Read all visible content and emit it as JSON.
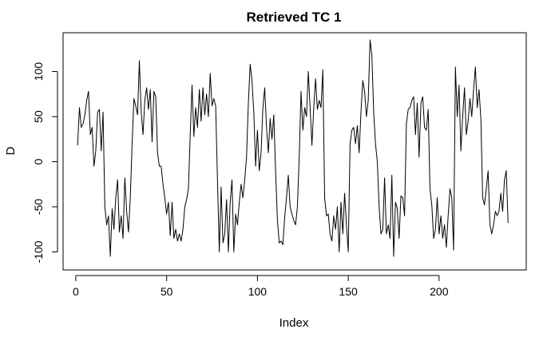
{
  "chart_data": {
    "type": "line",
    "title": "Retrieved TC   1",
    "xlabel": "Index",
    "ylabel": "D",
    "xlim": [
      -7,
      248
    ],
    "ylim": [
      -120,
      143
    ],
    "xticks": [
      0,
      50,
      100,
      150,
      200
    ],
    "yticks": [
      -100,
      -50,
      0,
      50,
      100
    ],
    "grid": false,
    "legend": "none",
    "line_color": "#000000",
    "series": [
      {
        "values": [
          18,
          60,
          38,
          42,
          52,
          68,
          78,
          30,
          38,
          -5,
          12,
          55,
          58,
          12,
          55,
          -50,
          -70,
          -60,
          -105,
          -52,
          -75,
          -40,
          -20,
          -78,
          -60,
          -85,
          -18,
          -55,
          -78,
          -40,
          20,
          70,
          62,
          52,
          112,
          55,
          30,
          68,
          82,
          58,
          80,
          22,
          78,
          72,
          10,
          -5,
          -5,
          -25,
          -40,
          -58,
          -45,
          -82,
          -45,
          -85,
          -75,
          -88,
          -80,
          -88,
          -75,
          -50,
          -42,
          -30,
          30,
          85,
          28,
          60,
          38,
          80,
          45,
          82,
          52,
          75,
          50,
          98,
          62,
          70,
          62,
          -20,
          -100,
          -28,
          -90,
          -80,
          -42,
          -100,
          -45,
          -20,
          -100,
          -58,
          -70,
          -45,
          -25,
          -40,
          -20,
          5,
          65,
          108,
          90,
          55,
          -5,
          35,
          -10,
          10,
          60,
          82,
          38,
          10,
          48,
          25,
          52,
          -10,
          -65,
          -90,
          -88,
          -92,
          -62,
          -40,
          -15,
          -50,
          -58,
          -65,
          -70,
          -50,
          5,
          78,
          35,
          60,
          50,
          100,
          60,
          18,
          60,
          92,
          58,
          68,
          60,
          102,
          -40,
          -60,
          -58,
          -80,
          -88,
          -60,
          -75,
          -50,
          -100,
          -45,
          -80,
          -35,
          -70,
          -100,
          20,
          35,
          38,
          20,
          40,
          10,
          55,
          90,
          78,
          50,
          68,
          135,
          118,
          55,
          20,
          0,
          -50,
          -80,
          -75,
          -18,
          -80,
          -70,
          -85,
          -15,
          -105,
          -45,
          -52,
          -85,
          -38,
          -40,
          -60,
          42,
          58,
          60,
          68,
          72,
          30,
          65,
          5,
          65,
          72,
          38,
          35,
          58,
          -30,
          -48,
          -85,
          -75,
          -40,
          -80,
          -60,
          -85,
          -70,
          -95,
          -60,
          -30,
          -40,
          -98,
          105,
          50,
          85,
          12,
          50,
          82,
          30,
          45,
          70,
          50,
          80,
          105,
          60,
          80,
          48,
          -40,
          -48,
          -30,
          -10,
          -70,
          -80,
          -70,
          -55,
          -60,
          -55,
          -35,
          -55,
          -20,
          -10,
          -68
        ]
      }
    ]
  }
}
